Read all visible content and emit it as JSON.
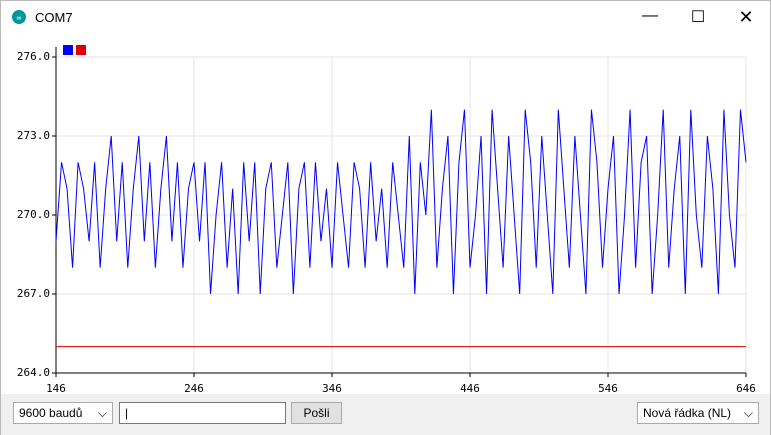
{
  "window": {
    "title": "COM7"
  },
  "chart_data": {
    "type": "line",
    "xlim": [
      146,
      646
    ],
    "xticks": [
      146,
      246,
      346,
      446,
      546,
      646
    ],
    "ylim": [
      264,
      276
    ],
    "yticks": [
      {
        "value": 264,
        "label": "264.0"
      },
      {
        "value": 267,
        "label": "267.0"
      },
      {
        "value": 270,
        "label": "270.0"
      },
      {
        "value": 273,
        "label": "273.0"
      },
      {
        "value": 276,
        "label": "276.0"
      }
    ],
    "grid": true,
    "series": [
      {
        "color": "#0000ff",
        "x": [
          146,
          150,
          154,
          158,
          162,
          166,
          170,
          174,
          178,
          182,
          186,
          190,
          194,
          198,
          202,
          206,
          210,
          214,
          218,
          222,
          226,
          230,
          234,
          238,
          242,
          246,
          250,
          254,
          258,
          262,
          266,
          270,
          274,
          278,
          282,
          286,
          290,
          294,
          298,
          302,
          306,
          310,
          314,
          318,
          322,
          326,
          330,
          334,
          338,
          342,
          346,
          350,
          354,
          358,
          362,
          366,
          370,
          374,
          378,
          382,
          386,
          390,
          394,
          398,
          402,
          406,
          410,
          414,
          418,
          422,
          426,
          430,
          434,
          438,
          442,
          446,
          450,
          454,
          458,
          462,
          466,
          470,
          474,
          478,
          482,
          486,
          490,
          494,
          498,
          502,
          506,
          510,
          514,
          518,
          522,
          526,
          530,
          534,
          538,
          542,
          546,
          550,
          554,
          558,
          562,
          566,
          570,
          574,
          578,
          582,
          586,
          590,
          594,
          598,
          602,
          606,
          610,
          614,
          618,
          622,
          626,
          630,
          634,
          638,
          642,
          646
        ],
        "values": [
          269,
          272,
          271,
          268,
          272,
          271,
          269,
          272,
          268,
          271,
          273,
          269,
          272,
          268,
          271,
          273,
          269,
          272,
          268,
          271,
          273,
          269,
          272,
          268,
          271,
          272,
          269,
          272,
          267,
          270,
          272,
          268,
          271,
          267,
          272,
          269,
          272,
          267,
          271,
          272,
          268,
          270,
          272,
          267,
          271,
          272,
          268,
          272,
          269,
          271,
          268,
          272,
          270,
          268,
          272,
          271,
          268,
          272,
          269,
          271,
          268,
          272,
          270,
          268,
          273,
          267,
          272,
          270,
          274,
          268,
          271,
          273,
          267,
          272,
          274,
          268,
          270,
          273,
          267,
          274,
          271,
          268,
          273,
          270,
          267,
          274,
          272,
          268,
          273,
          270,
          267,
          274,
          271,
          268,
          273,
          270,
          267,
          274,
          272,
          268,
          271,
          273,
          267,
          270,
          274,
          268,
          272,
          273,
          267,
          270,
          274,
          268,
          271,
          273,
          267,
          274,
          270,
          268,
          273,
          271,
          267,
          274,
          270,
          268,
          274,
          272
        ]
      },
      {
        "color": "#e00000",
        "x": [
          146,
          646
        ],
        "values": [
          265,
          265
        ]
      }
    ]
  },
  "controls": {
    "baud": "9600 baudů",
    "send": "Pošli",
    "line_ending": "Nová řádka (NL)"
  }
}
